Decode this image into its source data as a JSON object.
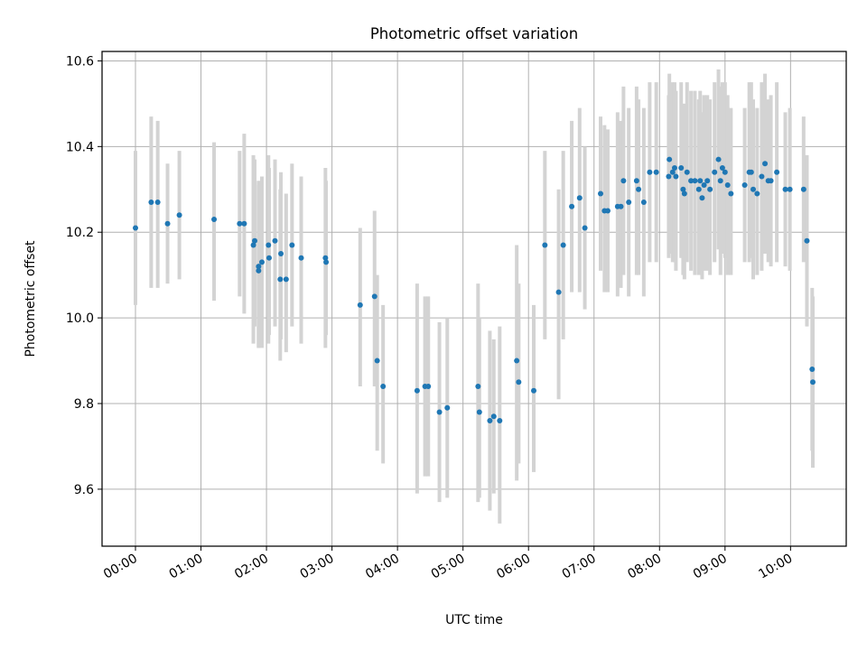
{
  "chart_data": {
    "type": "scatter",
    "title": "Photometric offset variation",
    "xlabel": "UTC time",
    "ylabel": "Photometric offset",
    "x_unit": "hours UTC",
    "xlim": [
      -0.51,
      10.85
    ],
    "ylim": [
      9.467,
      10.622
    ],
    "grid": true,
    "xticks": [
      0,
      1,
      2,
      3,
      4,
      5,
      6,
      7,
      8,
      9,
      10
    ],
    "xtick_labels": [
      "00:00",
      "01:00",
      "02:00",
      "03:00",
      "04:00",
      "05:00",
      "06:00",
      "07:00",
      "08:00",
      "09:00",
      "10:00"
    ],
    "yticks": [
      9.6,
      9.8,
      10.0,
      10.2,
      10.4,
      10.6
    ],
    "ytick_labels": [
      "9.6",
      "9.8",
      "10.0",
      "10.2",
      "10.4",
      "10.6"
    ],
    "colors": {
      "points": "#1f77b4",
      "errorbars": "#d3d3d3",
      "grid": "#b0b0b0"
    },
    "series": [
      {
        "name": "Photometric offset",
        "x": [
          0.0,
          0.24,
          0.34,
          0.49,
          0.67,
          1.2,
          1.59,
          1.66,
          1.8,
          1.82,
          1.88,
          1.88,
          1.93,
          2.03,
          2.04,
          2.13,
          2.21,
          2.22,
          2.3,
          2.39,
          2.53,
          2.9,
          2.91,
          3.43,
          3.65,
          3.69,
          3.78,
          4.3,
          4.42,
          4.47,
          4.64,
          4.76,
          5.23,
          5.25,
          5.41,
          5.47,
          5.56,
          5.82,
          5.85,
          6.08,
          6.25,
          6.46,
          6.53,
          6.66,
          6.78,
          6.86,
          7.1,
          7.16,
          7.21,
          7.36,
          7.41,
          7.45,
          7.53,
          7.65,
          7.68,
          7.76,
          7.85,
          7.95,
          8.14,
          8.15,
          8.2,
          8.23,
          8.25,
          8.33,
          8.36,
          8.38,
          8.42,
          8.48,
          8.54,
          8.6,
          8.62,
          8.65,
          8.68,
          8.73,
          8.77,
          8.84,
          8.9,
          8.93,
          8.96,
          9.0,
          9.04,
          9.09,
          9.3,
          9.37,
          9.4,
          9.43,
          9.49,
          9.56,
          9.61,
          9.66,
          9.7,
          9.79,
          9.92,
          9.99,
          10.2,
          10.25,
          10.33,
          10.34
        ],
        "y": [
          10.21,
          10.27,
          10.27,
          10.22,
          10.24,
          10.23,
          10.22,
          10.22,
          10.17,
          10.18,
          10.12,
          10.11,
          10.13,
          10.17,
          10.14,
          10.18,
          10.09,
          10.15,
          10.09,
          10.17,
          10.14,
          10.14,
          10.13,
          10.03,
          10.05,
          9.9,
          9.84,
          9.83,
          9.84,
          9.84,
          9.78,
          9.79,
          9.84,
          9.78,
          9.76,
          9.77,
          9.76,
          9.9,
          9.85,
          9.83,
          10.17,
          10.06,
          10.17,
          10.26,
          10.28,
          10.21,
          10.29,
          10.25,
          10.25,
          10.26,
          10.26,
          10.32,
          10.27,
          10.32,
          10.3,
          10.27,
          10.34,
          10.34,
          10.33,
          10.37,
          10.34,
          10.35,
          10.33,
          10.35,
          10.3,
          10.29,
          10.34,
          10.32,
          10.32,
          10.3,
          10.32,
          10.28,
          10.31,
          10.32,
          10.3,
          10.34,
          10.37,
          10.32,
          10.35,
          10.34,
          10.31,
          10.29,
          10.31,
          10.34,
          10.34,
          10.3,
          10.29,
          10.33,
          10.36,
          10.32,
          10.32,
          10.34,
          10.3,
          10.3,
          10.3,
          10.18,
          9.88,
          9.85
        ],
        "err_low": [
          10.03,
          10.07,
          10.07,
          10.08,
          10.09,
          10.04,
          10.05,
          10.01,
          9.94,
          9.98,
          9.93,
          9.93,
          9.93,
          9.94,
          9.96,
          9.98,
          9.9,
          9.95,
          9.92,
          9.98,
          9.94,
          9.93,
          9.96,
          9.84,
          9.84,
          9.69,
          9.66,
          9.59,
          9.63,
          9.63,
          9.57,
          9.58,
          9.57,
          9.58,
          9.55,
          9.59,
          9.52,
          9.62,
          9.66,
          9.64,
          9.95,
          9.81,
          9.95,
          10.06,
          10.06,
          10.02,
          10.11,
          10.06,
          10.06,
          10.05,
          10.07,
          10.1,
          10.05,
          10.1,
          10.1,
          10.05,
          10.13,
          10.13,
          10.14,
          10.15,
          10.13,
          10.13,
          10.11,
          10.14,
          10.1,
          10.09,
          10.13,
          10.11,
          10.1,
          10.1,
          10.11,
          10.09,
          10.11,
          10.11,
          10.1,
          10.13,
          10.16,
          10.1,
          10.15,
          10.14,
          10.1,
          10.1,
          10.13,
          10.13,
          10.14,
          10.09,
          10.1,
          10.11,
          10.15,
          10.13,
          10.12,
          10.13,
          10.12,
          10.11,
          10.13,
          9.98,
          9.69,
          9.65
        ],
        "err_high": [
          10.39,
          10.47,
          10.46,
          10.36,
          10.39,
          10.41,
          10.39,
          10.43,
          10.38,
          10.37,
          10.32,
          10.31,
          10.33,
          10.38,
          10.35,
          10.37,
          10.3,
          10.34,
          10.29,
          10.36,
          10.33,
          10.35,
          10.32,
          10.21,
          10.25,
          10.1,
          10.03,
          10.08,
          10.05,
          10.05,
          9.99,
          10.0,
          10.08,
          10.0,
          9.97,
          9.95,
          9.98,
          10.17,
          10.08,
          10.03,
          10.39,
          10.3,
          10.39,
          10.46,
          10.49,
          10.4,
          10.47,
          10.45,
          10.44,
          10.48,
          10.46,
          10.54,
          10.49,
          10.54,
          10.51,
          10.49,
          10.55,
          10.55,
          10.52,
          10.57,
          10.55,
          10.55,
          10.53,
          10.55,
          10.5,
          10.5,
          10.55,
          10.53,
          10.53,
          10.51,
          10.53,
          10.48,
          10.52,
          10.52,
          10.51,
          10.55,
          10.58,
          10.54,
          10.55,
          10.55,
          10.52,
          10.49,
          10.49,
          10.55,
          10.55,
          10.51,
          10.49,
          10.55,
          10.57,
          10.51,
          10.52,
          10.55,
          10.48,
          10.49,
          10.47,
          10.38,
          10.07,
          10.05
        ]
      }
    ]
  }
}
